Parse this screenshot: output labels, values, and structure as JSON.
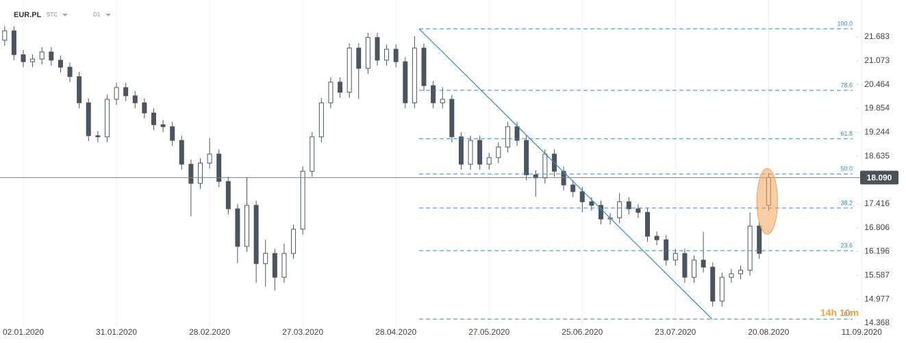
{
  "chart_data": {
    "type": "candlestick",
    "title": "EUR.PL",
    "market": "STC",
    "interval": "D1",
    "countdown": "14h 10m",
    "up_color": "#ffffff",
    "down_color": "#4b5560",
    "border_color": "#4b5560",
    "fib_color": "#2a8ad8",
    "grid": true,
    "xlim": [
      -0.5,
      93
    ],
    "ylim": [
      14.263,
      22.628
    ],
    "xticks": [
      {
        "value": 2,
        "label": "02.01.2020"
      },
      {
        "value": 12,
        "label": "31.01.2020"
      },
      {
        "value": 22,
        "label": "28.02.2020"
      },
      {
        "value": 32,
        "label": "27.03.2020"
      },
      {
        "value": 42,
        "label": "28.04.2020"
      },
      {
        "value": 52,
        "label": "27.05.2020"
      },
      {
        "value": 62,
        "label": "25.06.2020"
      },
      {
        "value": 72,
        "label": "23.07.2020"
      },
      {
        "value": 82,
        "label": "20.08.2020"
      },
      {
        "value": 92,
        "label": "11.09.2020"
      }
    ],
    "yticks": [
      21.683,
      21.073,
      20.464,
      19.854,
      19.244,
      18.635,
      17.416,
      16.806,
      16.196,
      15.587,
      14.977,
      14.368
    ],
    "current_price": {
      "value": 18.09,
      "label": "18.090"
    },
    "fib_levels": [
      {
        "label": "100.0",
        "value": 21.89
      },
      {
        "label": "78.6",
        "value": 20.32
      },
      {
        "label": "61.8",
        "value": 19.08
      },
      {
        "label": "50.0",
        "value": 18.18
      },
      {
        "label": "38.2",
        "value": 17.31
      },
      {
        "label": "23.6",
        "value": 16.22
      },
      {
        "label": "0.0",
        "value": 14.47
      }
    ],
    "series": [
      {
        "open": [
          21.6,
          21.84,
          21.23,
          21.05,
          21.12,
          21.3,
          21.09,
          20.91,
          20.67,
          20.0,
          19.16,
          19.13,
          20.09,
          20.39,
          20.18,
          20.0,
          19.74,
          19.44,
          19.39,
          19.04,
          18.43,
          17.94,
          18.46,
          18.69,
          17.99,
          17.29,
          16.33,
          17.38,
          15.89,
          16.15,
          15.54,
          16.15,
          16.77,
          18.25,
          19.13,
          20.0,
          20.53,
          20.27,
          21.4,
          20.88,
          21.67,
          21.09,
          21.37,
          21.05,
          20.0,
          21.4,
          20.44,
          20.0,
          20.09,
          19.13,
          18.43,
          19.04,
          18.43,
          18.6,
          18.87,
          19.39,
          19.04,
          18.16,
          18.08,
          18.69,
          18.25,
          17.9,
          17.73,
          17.47,
          17.38,
          17.03,
          17.06,
          17.47,
          17.29,
          17.2,
          16.59,
          16.5,
          15.98,
          16.15,
          15.54,
          15.98,
          15.8,
          14.93,
          15.54,
          15.63,
          15.72,
          16.85,
          17.38
        ],
        "high": [
          21.96,
          21.96,
          21.35,
          21.24,
          21.42,
          21.42,
          21.21,
          21.03,
          20.79,
          20.12,
          19.28,
          20.21,
          20.51,
          20.51,
          20.3,
          20.12,
          19.86,
          19.56,
          19.51,
          19.16,
          18.55,
          18.58,
          19.1,
          18.81,
          18.11,
          17.41,
          18.1,
          17.5,
          16.5,
          16.27,
          16.4,
          16.89,
          18.37,
          19.25,
          20.12,
          20.65,
          20.65,
          21.52,
          21.52,
          21.79,
          21.79,
          21.49,
          21.49,
          21.17,
          21.7,
          21.52,
          20.56,
          20.4,
          20.21,
          19.25,
          19.16,
          19.16,
          18.72,
          18.99,
          19.51,
          19.51,
          19.16,
          18.28,
          18.81,
          18.81,
          18.37,
          18.02,
          17.85,
          17.59,
          17.5,
          17.18,
          17.7,
          17.59,
          17.41,
          17.32,
          16.71,
          16.62,
          16.27,
          16.27,
          16.1,
          16.7,
          15.92,
          15.66,
          15.75,
          15.84,
          17.2,
          16.97,
          18.21
        ],
        "low": [
          21.46,
          21.09,
          20.91,
          20.91,
          20.98,
          20.95,
          20.77,
          20.53,
          19.86,
          19.02,
          18.99,
          18.99,
          19.95,
          20.04,
          19.86,
          19.6,
          19.3,
          19.25,
          18.9,
          18.29,
          17.1,
          17.8,
          18.32,
          17.85,
          17.15,
          15.9,
          16.19,
          15.4,
          15.3,
          15.2,
          15.4,
          16.01,
          16.63,
          18.11,
          18.99,
          19.86,
          20.13,
          20.13,
          20.1,
          20.74,
          20.95,
          20.95,
          20.91,
          19.86,
          19.86,
          20.3,
          19.86,
          19.86,
          18.99,
          18.29,
          18.29,
          18.29,
          18.29,
          18.46,
          18.73,
          18.9,
          18.02,
          17.6,
          17.94,
          18.11,
          17.76,
          17.59,
          17.2,
          17.24,
          16.89,
          16.89,
          16.92,
          17.15,
          17.06,
          16.45,
          16.36,
          15.84,
          15.84,
          15.4,
          15.4,
          15.66,
          14.79,
          14.79,
          15.4,
          15.49,
          15.58,
          16.01,
          17.24
        ],
        "close": [
          21.84,
          21.23,
          21.05,
          21.12,
          21.3,
          21.09,
          20.91,
          20.67,
          20.0,
          19.16,
          19.13,
          20.09,
          20.39,
          20.18,
          20.0,
          19.74,
          19.44,
          19.39,
          19.04,
          18.43,
          17.94,
          18.46,
          18.69,
          17.99,
          17.29,
          16.33,
          17.38,
          15.89,
          16.15,
          15.54,
          16.15,
          16.77,
          18.25,
          19.13,
          20.0,
          20.53,
          20.27,
          21.4,
          20.88,
          21.67,
          21.09,
          21.37,
          21.05,
          20.0,
          21.4,
          20.44,
          20.0,
          20.09,
          19.13,
          18.43,
          19.04,
          18.43,
          18.6,
          18.87,
          19.39,
          19.04,
          18.16,
          18.08,
          18.69,
          18.25,
          17.9,
          17.73,
          17.47,
          17.38,
          17.03,
          17.06,
          17.47,
          17.29,
          17.2,
          16.59,
          16.5,
          15.98,
          16.15,
          15.54,
          15.98,
          15.8,
          14.93,
          15.54,
          15.63,
          15.72,
          16.85,
          16.15,
          18.09
        ]
      }
    ]
  }
}
